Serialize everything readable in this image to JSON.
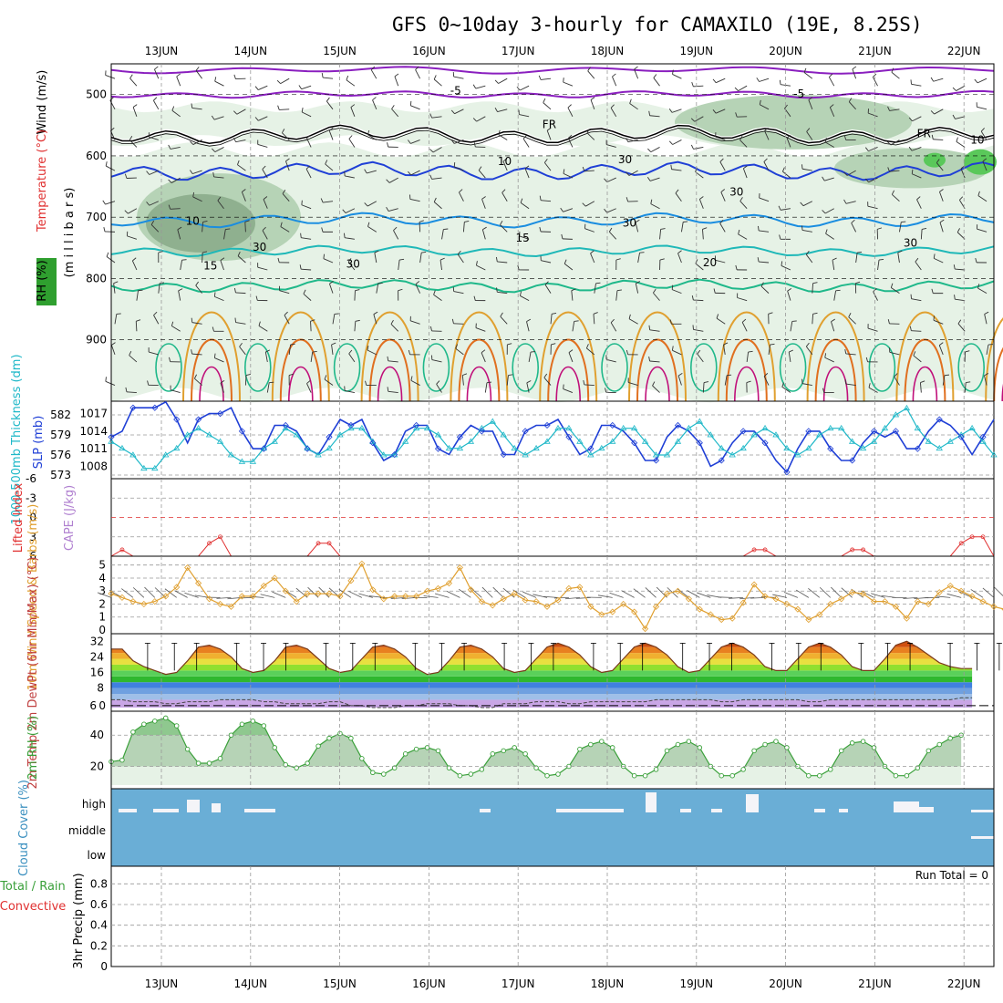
{
  "title": "GFS 0~10day 3-hourly for CAMAXILO (19E, 8.25S)",
  "dates": [
    "13JUN",
    "14JUN",
    "15JUN",
    "16JUN",
    "17JUN",
    "18JUN",
    "19JUN",
    "20JUN",
    "21JUN",
    "22JUN"
  ],
  "colors": {
    "purple": "#8a1fbf",
    "black": "#000000",
    "blue_dark": "#1f3fd6",
    "blue_mid": "#1a8de0",
    "teal": "#1fb8b8",
    "green": "#1fb88a",
    "orange": "#e0a030",
    "orange2": "#e07020",
    "magenta": "#c0107a",
    "rh_light": "#e6f2e6",
    "rh_mid": "#b6d3b6",
    "rh_dark": "#8fb08f",
    "slp": "#1f3fd6",
    "thick": "#1fb8c8",
    "li": "#e03030",
    "wind": "#e0a030",
    "rh2m": "#3aa03a",
    "cloud": "#6aaed6"
  },
  "chart_data": [
    {
      "type": "contour",
      "panel": "upper-air",
      "ylabel_parts": [
        "Wind (m/s)",
        "Temperature (°C)",
        "RH (%)",
        "(m i l l i b a r s)"
      ],
      "y_ticks": [
        500,
        600,
        700,
        800,
        900
      ],
      "ylim": [
        1000,
        450
      ],
      "contour_labels": [
        {
          "text": "-5",
          "x": 3.3,
          "p": 500
        },
        {
          "text": "-5",
          "x": 7.15,
          "p": 505
        },
        {
          "text": "FR",
          "x": 4.35,
          "p": 555
        },
        {
          "text": "FR",
          "x": 8.55,
          "p": 570
        },
        {
          "text": "10",
          "x": 0.35,
          "p": 712
        },
        {
          "text": "15",
          "x": 0.55,
          "p": 785
        },
        {
          "text": "15",
          "x": 4.05,
          "p": 740
        },
        {
          "text": "20",
          "x": 6.15,
          "p": 780
        },
        {
          "text": "10",
          "x": 3.85,
          "p": 615
        },
        {
          "text": "30",
          "x": 5.2,
          "p": 612
        },
        {
          "text": "30",
          "x": 6.45,
          "p": 665
        },
        {
          "text": "30",
          "x": 5.25,
          "p": 715
        },
        {
          "text": "30",
          "x": 1.1,
          "p": 755
        },
        {
          "text": "30",
          "x": 2.15,
          "p": 782
        },
        {
          "text": "30",
          "x": 8.4,
          "p": 748
        },
        {
          "text": "10",
          "x": 9.15,
          "p": 580
        }
      ]
    },
    {
      "type": "line",
      "panel": "thickness-slp",
      "ylabel_left": "1000-500mb Thickness (dm)",
      "ylabel_right": "SLP (mb)",
      "thickness_ticks": [
        573,
        576,
        579,
        582
      ],
      "slp_ticks": [
        1008,
        1011,
        1014,
        1017
      ],
      "series": [
        {
          "name": "SLP",
          "axis": "slp",
          "values": [
            1013,
            1014,
            1018,
            1018,
            1018,
            1019,
            1016,
            1012,
            1016,
            1017,
            1017,
            1018,
            1014,
            1011,
            1011,
            1015,
            1015,
            1014,
            1011,
            1010,
            1013,
            1016,
            1015,
            1016,
            1012,
            1009,
            1010,
            1014,
            1015,
            1015,
            1011,
            1010,
            1013,
            1015,
            1014,
            1014,
            1010,
            1010,
            1014,
            1015,
            1015,
            1016,
            1013,
            1010,
            1011,
            1015,
            1015,
            1014,
            1012,
            1009,
            1009,
            1013,
            1015,
            1014,
            1012,
            1008,
            1009,
            1012,
            1014,
            1014,
            1012,
            1009,
            1007,
            1011,
            1014,
            1014,
            1011,
            1009,
            1009,
            1012,
            1014,
            1013,
            1014,
            1011,
            1011,
            1014,
            1016,
            1015,
            1013,
            1010,
            1013,
            1016
          ]
        },
        {
          "name": "Thickness",
          "axis": "thick",
          "values": [
            578,
            577,
            576,
            574,
            574,
            576,
            577,
            579,
            580,
            579,
            578,
            576,
            575,
            575,
            577,
            578,
            580,
            579,
            577,
            576,
            577,
            579,
            580,
            580,
            578,
            576,
            576,
            578,
            580,
            580,
            579,
            577,
            577,
            578,
            580,
            581,
            579,
            577,
            576,
            577,
            578,
            580,
            580,
            578,
            576,
            577,
            578,
            580,
            580,
            578,
            576,
            576,
            578,
            580,
            581,
            579,
            577,
            576,
            577,
            579,
            580,
            579,
            577,
            576,
            577,
            579,
            580,
            580,
            578,
            577,
            578,
            580,
            582,
            583,
            580,
            578,
            577,
            578,
            579,
            580,
            578,
            576
          ]
        }
      ]
    },
    {
      "type": "line",
      "panel": "lifted-index",
      "ylabel_left": "Lifted Index",
      "ylabel_right": "CAPE (J/kg)",
      "y_ticks": [
        6,
        3,
        0,
        -3,
        -6
      ],
      "series": [
        {
          "name": "Lifted Index",
          "values": [
            6,
            5,
            6,
            6,
            6,
            6,
            6,
            6,
            6,
            4,
            3,
            6,
            6,
            6,
            6,
            6,
            6,
            6,
            6,
            4,
            4,
            6,
            6,
            6,
            6,
            6,
            6,
            6,
            6,
            6,
            6,
            6,
            6,
            6,
            6,
            6,
            6,
            6,
            6,
            6,
            6,
            6,
            6,
            6,
            6,
            6,
            6,
            6,
            6,
            6,
            6,
            6,
            6,
            6,
            6,
            6,
            6,
            6,
            6,
            5,
            5,
            6,
            6,
            6,
            6,
            6,
            6,
            6,
            5,
            5,
            6,
            6,
            6,
            6,
            6,
            6,
            6,
            6,
            4,
            3,
            3,
            6
          ]
        }
      ]
    },
    {
      "type": "line",
      "panel": "wind-10m",
      "ylabel_left": "10m Wind Speed & Barbs (m/s)",
      "y_ticks": [
        0,
        1,
        2,
        3,
        4,
        5
      ],
      "series": [
        {
          "name": "10m Wind Speed",
          "values": [
            2.8,
            2.5,
            2.2,
            2.0,
            2.2,
            2.6,
            3.3,
            4.8,
            3.6,
            2.4,
            2.0,
            1.8,
            2.6,
            2.6,
            3.4,
            4.0,
            3.0,
            2.2,
            2.8,
            2.8,
            2.8,
            2.6,
            3.8,
            5.1,
            3.1,
            2.4,
            2.6,
            2.6,
            2.6,
            3.0,
            3.2,
            3.6,
            4.8,
            3.1,
            2.2,
            1.9,
            2.4,
            2.8,
            2.3,
            2.2,
            1.8,
            2.3,
            3.2,
            3.3,
            1.8,
            1.2,
            1.4,
            2.0,
            1.4,
            0.1,
            1.8,
            2.8,
            3.0,
            2.4,
            1.6,
            1.2,
            0.8,
            0.9,
            2.1,
            3.5,
            2.6,
            2.4,
            2.0,
            1.6,
            0.8,
            1.2,
            2.0,
            2.4,
            2.9,
            2.8,
            2.2,
            2.2,
            1.8,
            0.9,
            2.2,
            2.0,
            2.9,
            3.4,
            3.0,
            2.6,
            2.2,
            1.8,
            1.6,
            1.6,
            2.0,
            2.4
          ]
        }
      ]
    },
    {
      "type": "area",
      "panel": "temperature-2m",
      "ylabel_left": "2m Temp 2m DewPt (6hr Min/Max) (°C)",
      "y_ticks": [
        0,
        8,
        16,
        24,
        32
      ],
      "extra_tick": "6",
      "series": [
        {
          "name": "2m Temp",
          "values": [
            28,
            28,
            22,
            19,
            17,
            15,
            16,
            22,
            29,
            30,
            28,
            24,
            18,
            16,
            17,
            22,
            29,
            30,
            28,
            23,
            18,
            16,
            17,
            23,
            29,
            30,
            28,
            24,
            18,
            15,
            16,
            22,
            29,
            30,
            28,
            24,
            18,
            16,
            17,
            23,
            29,
            31,
            29,
            25,
            19,
            16,
            17,
            23,
            29,
            31,
            29,
            25,
            19,
            16,
            17,
            23,
            29,
            31,
            29,
            25,
            19,
            17,
            17,
            23,
            29,
            31,
            29,
            25,
            19,
            17,
            17,
            23,
            30,
            32,
            29,
            25,
            21,
            19,
            18,
            18
          ]
        },
        {
          "name": "2m DewPt",
          "values": [
            2,
            2,
            1,
            1,
            1,
            0,
            0,
            1,
            1,
            1,
            2,
            2,
            2,
            2,
            1,
            1,
            0,
            0,
            0,
            0,
            1,
            1,
            -1,
            -1,
            -2,
            -2,
            -2,
            -1,
            -1,
            0,
            0,
            0,
            -1,
            -1,
            -2,
            -2,
            0,
            0,
            0,
            1,
            1,
            1,
            0,
            0,
            1,
            1,
            1,
            1,
            1,
            1,
            2,
            2,
            2,
            2,
            2,
            2,
            1,
            1,
            2,
            2,
            2,
            2,
            2,
            2,
            1,
            1,
            2,
            2,
            2,
            2,
            2,
            2,
            2,
            2,
            2,
            2,
            2,
            2,
            3,
            3
          ]
        }
      ]
    },
    {
      "type": "area",
      "panel": "rh-2m",
      "ylabel_left": "2m RH (%)",
      "y_ticks": [
        20,
        40
      ],
      "series": [
        {
          "name": "2m RH",
          "values": [
            23,
            24,
            42,
            47,
            49,
            51,
            46,
            31,
            22,
            22,
            25,
            40,
            47,
            49,
            46,
            32,
            21,
            19,
            22,
            33,
            38,
            41,
            38,
            25,
            16,
            15,
            19,
            28,
            31,
            32,
            30,
            19,
            14,
            15,
            18,
            28,
            30,
            32,
            28,
            19,
            14,
            15,
            20,
            31,
            34,
            36,
            32,
            20,
            14,
            14,
            18,
            30,
            34,
            36,
            32,
            20,
            14,
            14,
            18,
            30,
            34,
            36,
            32,
            20,
            14,
            14,
            18,
            30,
            35,
            36,
            32,
            20,
            14,
            14,
            19,
            30,
            34,
            38,
            40
          ]
        }
      ]
    },
    {
      "type": "bar",
      "panel": "cloud-cover",
      "ylabel_left": "Cloud Cover (%)",
      "y_labels": [
        "high",
        "middle",
        "low"
      ]
    },
    {
      "type": "bar",
      "panel": "precip",
      "ylabel_left": "3hr Precip (mm)",
      "ylabel_series": [
        "Total / Rain",
        "Convective"
      ],
      "y_ticks": [
        0,
        0.2,
        0.4,
        0.6,
        0.8
      ],
      "run_total": "Run Total = 0"
    }
  ]
}
